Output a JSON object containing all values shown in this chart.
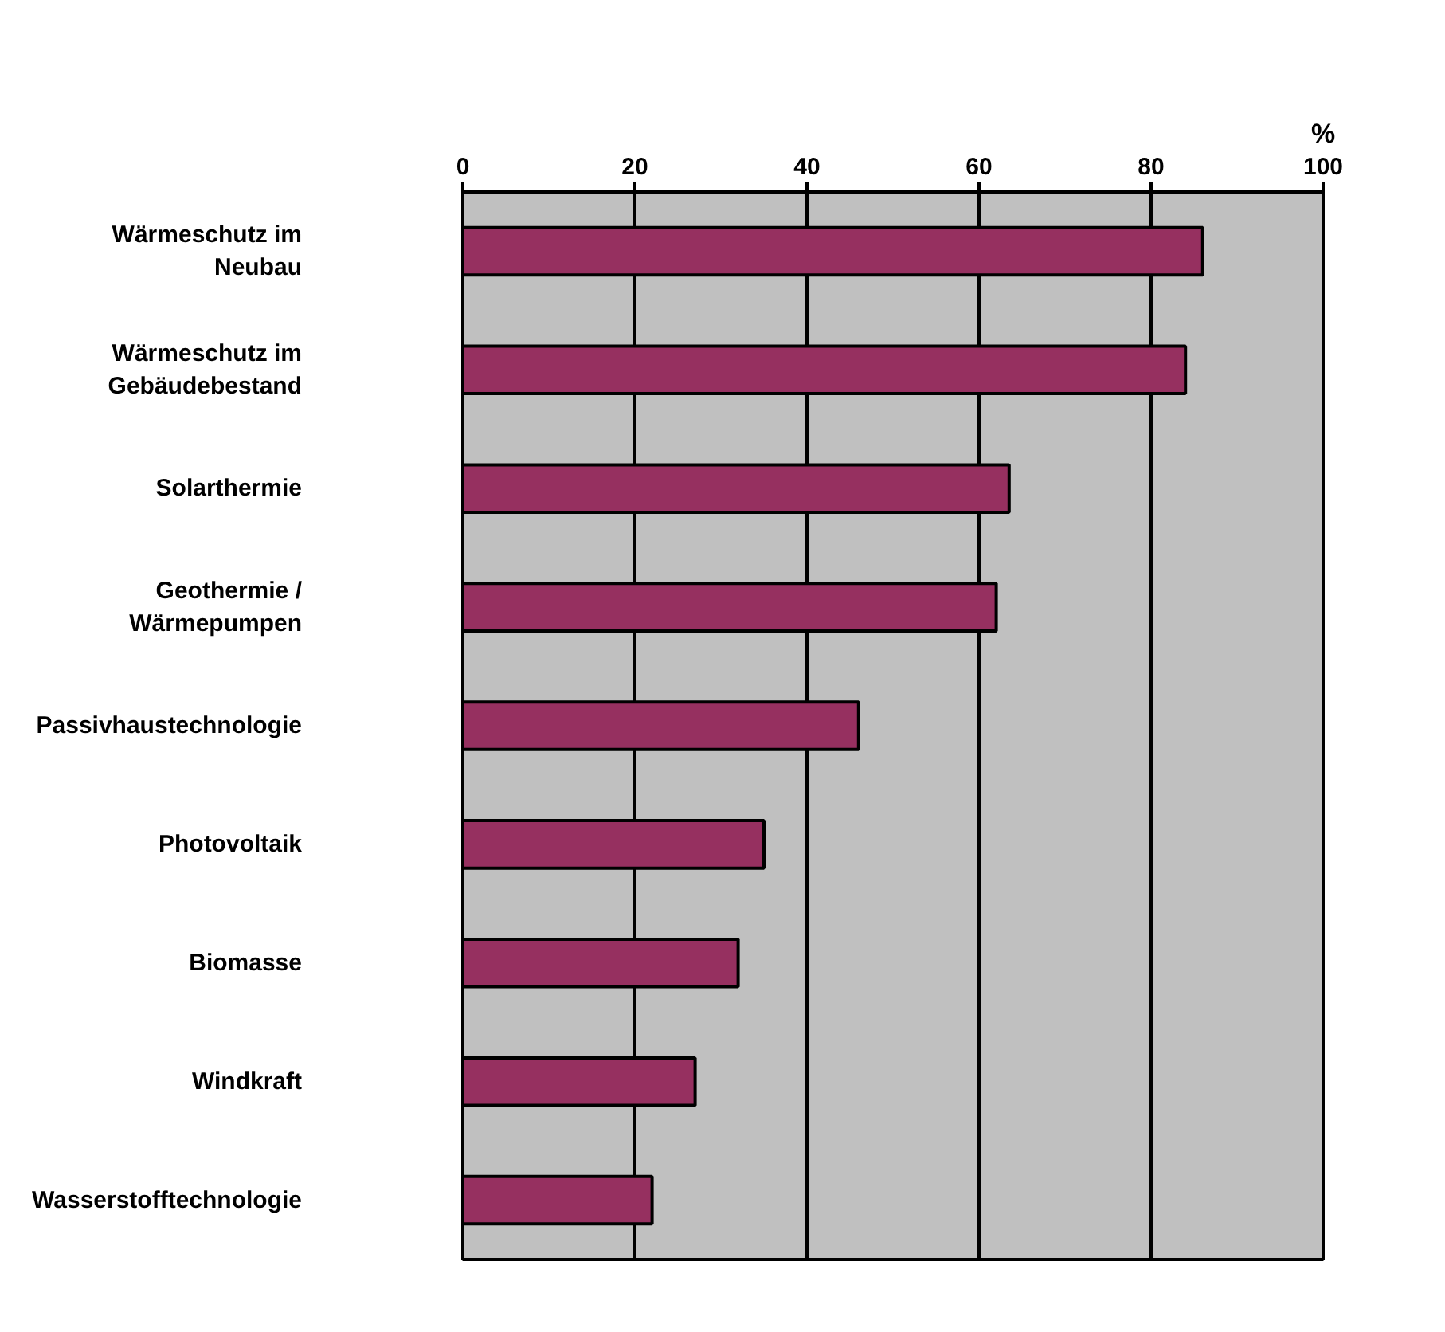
{
  "chart_data": {
    "type": "bar",
    "orientation": "horizontal",
    "xlabel": "%",
    "categories": [
      "Wärmeschutz im\nNeubau",
      "Wärmeschutz im\nGebäudebestand",
      "Solarthermie",
      "Geothermie /\nWärmepumpen",
      "Passivhaustechnologie",
      "Photovoltaik",
      "Biomasse",
      "Windkraft",
      "Wasserstofftechnologie"
    ],
    "values": [
      86,
      84,
      63.5,
      62,
      46,
      35,
      32,
      27,
      22
    ],
    "color": "#963060",
    "xlim": [
      0,
      100
    ],
    "xticks": [
      0,
      20,
      40,
      60,
      80,
      100
    ],
    "grid": "x"
  }
}
